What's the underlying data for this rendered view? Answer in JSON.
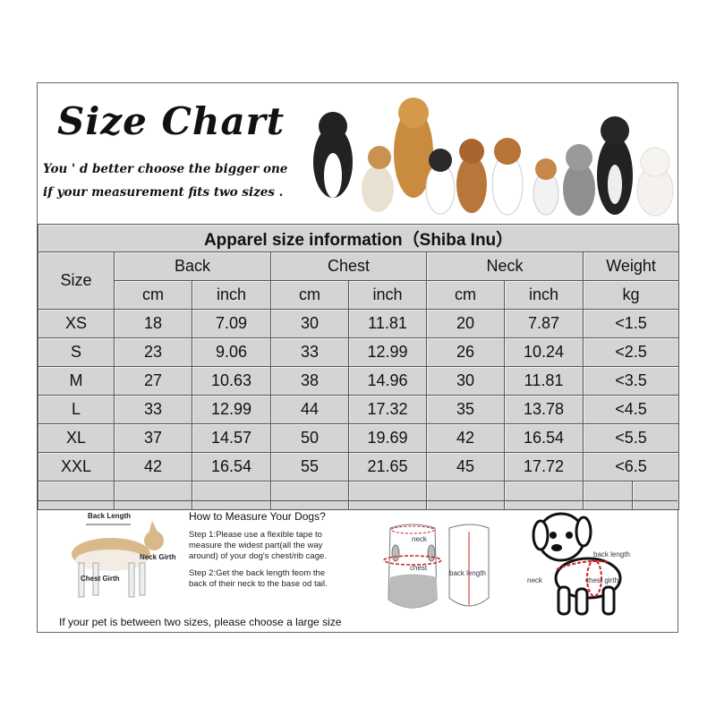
{
  "header": {
    "title": "Size Chart",
    "subtitle_line1": "You ' d better choose the bigger one",
    "subtitle_line2": "if your measurement fits two sizes ."
  },
  "table": {
    "title": "Apparel  size  information（Shiba Inu）",
    "size_header": "Size",
    "groups": [
      "Back",
      "Chest",
      "Neck",
      "Weight"
    ],
    "units": [
      "cm",
      "inch",
      "cm",
      "inch",
      "cm",
      "inch",
      "kg"
    ],
    "rows": [
      [
        "XS",
        "18",
        "7.09",
        "30",
        "11.81",
        "20",
        "7.87",
        "<1.5"
      ],
      [
        "S",
        "23",
        "9.06",
        "33",
        "12.99",
        "26",
        "10.24",
        "<2.5"
      ],
      [
        "M",
        "27",
        "10.63",
        "38",
        "14.96",
        "30",
        "11.81",
        "<3.5"
      ],
      [
        "L",
        "33",
        "12.99",
        "44",
        "17.32",
        "35",
        "13.78",
        "<4.5"
      ],
      [
        "XL",
        "37",
        "14.57",
        "50",
        "19.69",
        "42",
        "16.54",
        "<5.5"
      ],
      [
        "XXL",
        "42",
        "16.54",
        "55",
        "21.65",
        "45",
        "17.72",
        "<6.5"
      ]
    ]
  },
  "measure": {
    "dog_labels": {
      "back": "Back Length",
      "neck": "Neck Girth",
      "chest": "Chest Girth"
    },
    "heading": "How to Measure Your Dogs?",
    "step1": "Step 1:Please use a flexible tape to measure the widest part(all the way around) of your dog's chest/rib cage.",
    "step2": "Step 2:Get the back length feom the back of their neck to the base od tail.",
    "garment_labels": {
      "neck": "neck",
      "chest": "chest",
      "back": "back length"
    },
    "puppy_labels": {
      "back": "back length",
      "neck": "neck",
      "chest": "chest girth"
    },
    "note": "If your pet is between two sizes, please choose a large size"
  },
  "colors": {
    "cell": "#d4d4d4",
    "border": "#555555",
    "measure_line": "#d0202a"
  }
}
